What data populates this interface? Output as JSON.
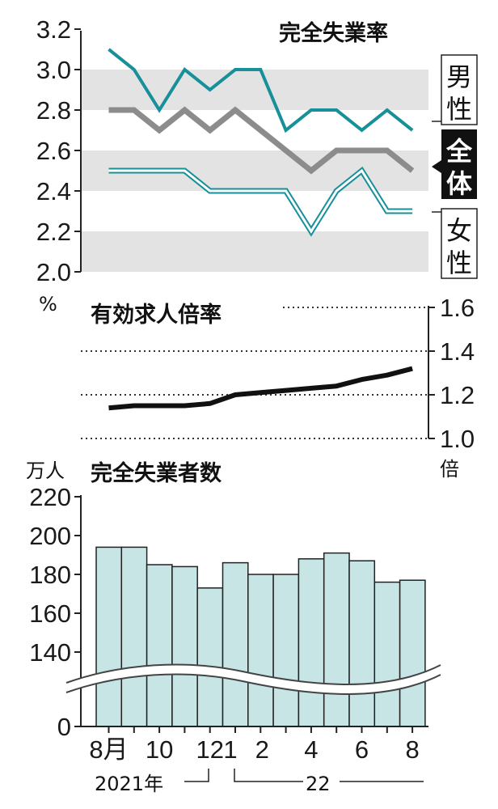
{
  "colors": {
    "male": "#17909a",
    "total": "#8c8c8c",
    "female": "#17909a",
    "band": "#e3e3e3",
    "bar_fill": "#c8e5e6",
    "bar_stroke": "#222222",
    "ratio_line": "#111111"
  },
  "x_axis": {
    "month_labels": [
      "8月",
      "10",
      "12",
      "1",
      "2",
      "4",
      "6",
      "8"
    ],
    "year_labels": [
      "2021年",
      "22"
    ]
  },
  "chart_data": [
    {
      "type": "line",
      "title": "完全失業率",
      "unit": "%",
      "ylim": [
        2.0,
        3.2
      ],
      "yticks": [
        "3.2",
        "3.0",
        "2.8",
        "2.6",
        "2.4",
        "2.2",
        "2.0"
      ],
      "categories": [
        "2021-08",
        "2021-09",
        "2021-10",
        "2021-11",
        "2021-12",
        "2022-01",
        "2022-02",
        "2022-03",
        "2022-04",
        "2022-05",
        "2022-06",
        "2022-07",
        "2022-08"
      ],
      "series": [
        {
          "name": "男性",
          "values": [
            3.1,
            3.0,
            2.8,
            3.0,
            2.9,
            3.0,
            3.0,
            2.7,
            2.8,
            2.8,
            2.7,
            2.8,
            2.7
          ]
        },
        {
          "name": "全体",
          "values": [
            2.8,
            2.8,
            2.7,
            2.8,
            2.7,
            2.8,
            2.7,
            2.6,
            2.5,
            2.6,
            2.6,
            2.6,
            2.5
          ]
        },
        {
          "name": "女性",
          "values": [
            2.5,
            2.5,
            2.5,
            2.5,
            2.4,
            2.4,
            2.4,
            2.4,
            2.2,
            2.4,
            2.5,
            2.3,
            2.3
          ]
        }
      ],
      "grid_bands": [
        [
          2.0,
          2.2
        ],
        [
          2.4,
          2.6
        ],
        [
          2.8,
          3.0
        ]
      ]
    },
    {
      "type": "line",
      "title": "有効求人倍率",
      "unit": "倍",
      "ylim": [
        1.0,
        1.6
      ],
      "yticks": [
        "1.6",
        "1.4",
        "1.2",
        "1.0"
      ],
      "categories": [
        "2021-08",
        "2021-09",
        "2021-10",
        "2021-11",
        "2021-12",
        "2022-01",
        "2022-02",
        "2022-03",
        "2022-04",
        "2022-05",
        "2022-06",
        "2022-07",
        "2022-08"
      ],
      "series": [
        {
          "name": "有効求人倍率",
          "values": [
            1.14,
            1.15,
            1.15,
            1.15,
            1.16,
            1.2,
            1.21,
            1.22,
            1.23,
            1.24,
            1.27,
            1.29,
            1.32
          ]
        }
      ]
    },
    {
      "type": "bar",
      "title": "完全失業者数",
      "unit": "万人",
      "ylim": [
        0,
        220
      ],
      "axis_break": true,
      "yticks": [
        "220",
        "200",
        "180",
        "160",
        "140",
        "0"
      ],
      "categories": [
        "2021-08",
        "2021-09",
        "2021-10",
        "2021-11",
        "2021-12",
        "2022-01",
        "2022-02",
        "2022-03",
        "2022-04",
        "2022-05",
        "2022-06",
        "2022-07",
        "2022-08"
      ],
      "values": [
        194,
        194,
        185,
        184,
        173,
        186,
        180,
        180,
        188,
        191,
        187,
        176,
        177
      ]
    }
  ]
}
